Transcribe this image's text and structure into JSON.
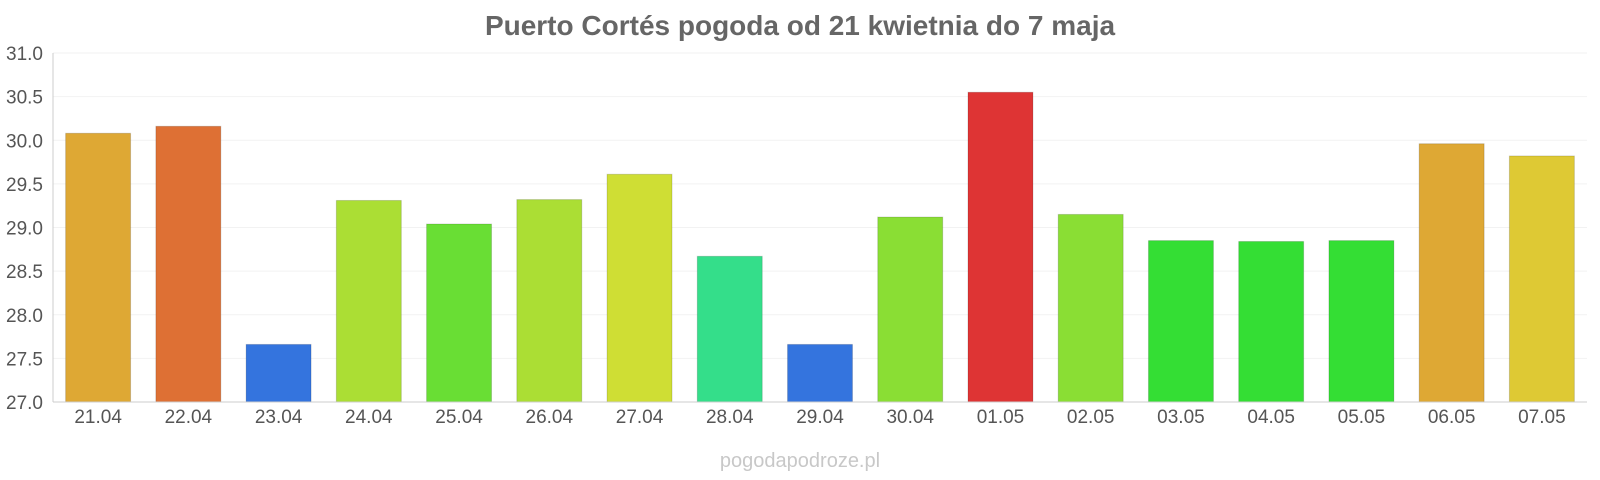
{
  "chart_data": {
    "type": "bar",
    "title": "Puerto Cortés pogoda od 21 kwietnia do 7 maja",
    "xlabel": "",
    "ylabel": "",
    "ylim": [
      27.0,
      31.0
    ],
    "yticks": [
      "27.0",
      "27.5",
      "28.0",
      "28.5",
      "29.0",
      "29.5",
      "30.0",
      "30.5",
      "31.0"
    ],
    "grid": true,
    "legend": "none",
    "categories": [
      "21.04",
      "22.04",
      "23.04",
      "24.04",
      "25.04",
      "26.04",
      "27.04",
      "28.04",
      "29.04",
      "30.04",
      "01.05",
      "02.05",
      "03.05",
      "04.05",
      "05.05",
      "06.05",
      "07.05"
    ],
    "values": [
      30.08,
      30.16,
      27.66,
      29.31,
      29.04,
      29.32,
      29.61,
      28.67,
      27.66,
      29.12,
      30.55,
      29.15,
      28.85,
      28.84,
      28.85,
      29.96,
      29.82
    ],
    "colors": [
      "#dea834",
      "#de7034",
      "#3474de",
      "#abde34",
      "#69de34",
      "#abde34",
      "#cfde34",
      "#34de8a",
      "#3474de",
      "#8ade34",
      "#de3434",
      "#8ade34",
      "#34de34",
      "#34de34",
      "#34de34",
      "#dea834",
      "#dec934"
    ]
  },
  "watermark": "pogodapodroze.pl"
}
